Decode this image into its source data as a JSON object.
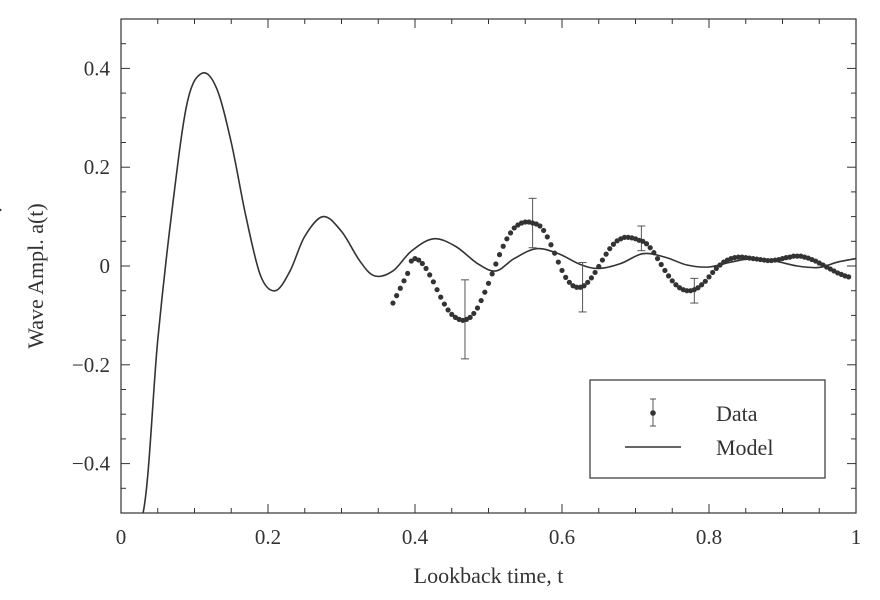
{
  "chart_data": {
    "type": "line",
    "xlabel": "Lookback time, t",
    "ylabel_prefix": "Wave Ampl.",
    "ylabel_symbol": "a(t)",
    "ylabel_accent": "˙",
    "xlim": [
      0,
      1
    ],
    "ylim": [
      -0.5,
      0.5
    ],
    "x_ticks": [
      0,
      0.2,
      0.4,
      0.6,
      0.8,
      1
    ],
    "x_tick_labels": [
      "0",
      "0.2",
      "0.4",
      "0.6",
      "0.8",
      "1"
    ],
    "y_ticks": [
      -0.4,
      -0.2,
      0,
      0.2,
      0.4
    ],
    "y_tick_labels": [
      "−0.4",
      "−0.2",
      "0",
      "0.2",
      "0.4"
    ],
    "grid": false,
    "legend": {
      "position": "bottom-right",
      "entries": [
        {
          "label": "Data",
          "style": "point-with-error-bar"
        },
        {
          "label": "Model",
          "style": "line"
        }
      ]
    },
    "series": [
      {
        "name": "Model",
        "style": "line",
        "points": [
          [
            0.0,
            -0.5
          ],
          [
            0.03,
            -0.5
          ],
          [
            0.05,
            -0.15
          ],
          [
            0.07,
            0.12
          ],
          [
            0.09,
            0.33
          ],
          [
            0.11,
            0.39
          ],
          [
            0.13,
            0.36
          ],
          [
            0.15,
            0.25
          ],
          [
            0.17,
            0.1
          ],
          [
            0.19,
            -0.02
          ],
          [
            0.21,
            -0.05
          ],
          [
            0.23,
            -0.01
          ],
          [
            0.25,
            0.06
          ],
          [
            0.275,
            0.1
          ],
          [
            0.3,
            0.07
          ],
          [
            0.325,
            0.01
          ],
          [
            0.345,
            -0.02
          ],
          [
            0.37,
            -0.01
          ],
          [
            0.395,
            0.03
          ],
          [
            0.425,
            0.055
          ],
          [
            0.455,
            0.04
          ],
          [
            0.485,
            0.005
          ],
          [
            0.51,
            -0.01
          ],
          [
            0.535,
            0.015
          ],
          [
            0.565,
            0.035
          ],
          [
            0.595,
            0.025
          ],
          [
            0.625,
            0.003
          ],
          [
            0.65,
            -0.005
          ],
          [
            0.68,
            0.005
          ],
          [
            0.71,
            0.025
          ],
          [
            0.74,
            0.018
          ],
          [
            0.77,
            0.002
          ],
          [
            0.8,
            -0.002
          ],
          [
            0.83,
            0.008
          ],
          [
            0.86,
            0.015
          ],
          [
            0.89,
            0.01
          ],
          [
            0.92,
            0.0
          ],
          [
            0.95,
            -0.003
          ],
          [
            0.975,
            0.008
          ],
          [
            1.0,
            0.015
          ]
        ]
      },
      {
        "name": "Data",
        "style": "points",
        "points": [
          [
            0.37,
            -0.075
          ],
          [
            0.375,
            -0.06
          ],
          [
            0.38,
            -0.045
          ],
          [
            0.385,
            -0.03
          ],
          [
            0.39,
            -0.015
          ],
          [
            0.395,
            0.01
          ],
          [
            0.4,
            0.015
          ],
          [
            0.405,
            0.012
          ],
          [
            0.41,
            0.005
          ],
          [
            0.415,
            -0.005
          ],
          [
            0.42,
            -0.018
          ],
          [
            0.425,
            -0.032
          ],
          [
            0.43,
            -0.048
          ],
          [
            0.435,
            -0.063
          ],
          [
            0.44,
            -0.077
          ],
          [
            0.445,
            -0.089
          ],
          [
            0.45,
            -0.098
          ],
          [
            0.455,
            -0.104
          ],
          [
            0.46,
            -0.108
          ],
          [
            0.465,
            -0.11
          ],
          [
            0.47,
            -0.108
          ],
          [
            0.475,
            -0.104
          ],
          [
            0.48,
            -0.096
          ],
          [
            0.485,
            -0.085
          ],
          [
            0.49,
            -0.07
          ],
          [
            0.495,
            -0.053
          ],
          [
            0.5,
            -0.035
          ],
          [
            0.505,
            -0.016
          ],
          [
            0.51,
            0.004
          ],
          [
            0.515,
            0.023
          ],
          [
            0.52,
            0.04
          ],
          [
            0.525,
            0.055
          ],
          [
            0.53,
            0.067
          ],
          [
            0.535,
            0.077
          ],
          [
            0.54,
            0.083
          ],
          [
            0.545,
            0.087
          ],
          [
            0.55,
            0.089
          ],
          [
            0.555,
            0.089
          ],
          [
            0.56,
            0.087
          ],
          [
            0.565,
            0.085
          ],
          [
            0.57,
            0.081
          ],
          [
            0.575,
            0.072
          ],
          [
            0.58,
            0.059
          ],
          [
            0.585,
            0.043
          ],
          [
            0.59,
            0.026
          ],
          [
            0.595,
            0.008
          ],
          [
            0.6,
            -0.009
          ],
          [
            0.605,
            -0.023
          ],
          [
            0.61,
            -0.033
          ],
          [
            0.615,
            -0.04
          ],
          [
            0.62,
            -0.043
          ],
          [
            0.625,
            -0.043
          ],
          [
            0.63,
            -0.04
          ],
          [
            0.635,
            -0.033
          ],
          [
            0.64,
            -0.024
          ],
          [
            0.645,
            -0.013
          ],
          [
            0.65,
            -0.001
          ],
          [
            0.655,
            0.012
          ],
          [
            0.66,
            0.024
          ],
          [
            0.665,
            0.035
          ],
          [
            0.67,
            0.044
          ],
          [
            0.675,
            0.051
          ],
          [
            0.68,
            0.055
          ],
          [
            0.685,
            0.058
          ],
          [
            0.69,
            0.058
          ],
          [
            0.695,
            0.057
          ],
          [
            0.7,
            0.055
          ],
          [
            0.705,
            0.052
          ],
          [
            0.71,
            0.05
          ],
          [
            0.715,
            0.045
          ],
          [
            0.72,
            0.037
          ],
          [
            0.725,
            0.027
          ],
          [
            0.73,
            0.015
          ],
          [
            0.735,
            0.003
          ],
          [
            0.74,
            -0.009
          ],
          [
            0.745,
            -0.02
          ],
          [
            0.75,
            -0.03
          ],
          [
            0.755,
            -0.038
          ],
          [
            0.76,
            -0.044
          ],
          [
            0.765,
            -0.048
          ],
          [
            0.77,
            -0.05
          ],
          [
            0.775,
            -0.05
          ],
          [
            0.78,
            -0.048
          ],
          [
            0.785,
            -0.044
          ],
          [
            0.79,
            -0.038
          ],
          [
            0.795,
            -0.031
          ],
          [
            0.8,
            -0.022
          ],
          [
            0.805,
            -0.013
          ],
          [
            0.81,
            -0.005
          ],
          [
            0.815,
            0.002
          ],
          [
            0.82,
            0.008
          ],
          [
            0.825,
            0.012
          ],
          [
            0.83,
            0.015
          ],
          [
            0.835,
            0.017
          ],
          [
            0.84,
            0.018
          ],
          [
            0.845,
            0.018
          ],
          [
            0.85,
            0.017
          ],
          [
            0.855,
            0.016
          ],
          [
            0.86,
            0.015
          ],
          [
            0.865,
            0.014
          ],
          [
            0.87,
            0.013
          ],
          [
            0.875,
            0.012
          ],
          [
            0.88,
            0.011
          ],
          [
            0.885,
            0.011
          ],
          [
            0.89,
            0.012
          ],
          [
            0.895,
            0.013
          ],
          [
            0.9,
            0.015
          ],
          [
            0.905,
            0.017
          ],
          [
            0.91,
            0.018
          ],
          [
            0.915,
            0.02
          ],
          [
            0.92,
            0.02
          ],
          [
            0.925,
            0.02
          ],
          [
            0.93,
            0.018
          ],
          [
            0.935,
            0.016
          ],
          [
            0.94,
            0.013
          ],
          [
            0.945,
            0.01
          ],
          [
            0.95,
            0.006
          ],
          [
            0.955,
            0.002
          ],
          [
            0.96,
            -0.002
          ],
          [
            0.965,
            -0.006
          ],
          [
            0.97,
            -0.01
          ],
          [
            0.975,
            -0.014
          ],
          [
            0.98,
            -0.017
          ],
          [
            0.985,
            -0.02
          ],
          [
            0.99,
            -0.022
          ]
        ],
        "error_bars": [
          {
            "x": 0.468,
            "y": -0.108,
            "low": -0.188,
            "high": -0.028
          },
          {
            "x": 0.56,
            "y": 0.087,
            "low": 0.037,
            "high": 0.137
          },
          {
            "x": 0.628,
            "y": -0.043,
            "low": -0.093,
            "high": 0.007
          },
          {
            "x": 0.708,
            "y": 0.056,
            "low": 0.031,
            "high": 0.081
          },
          {
            "x": 0.78,
            "y": -0.05,
            "low": -0.075,
            "high": -0.025
          }
        ]
      }
    ]
  }
}
